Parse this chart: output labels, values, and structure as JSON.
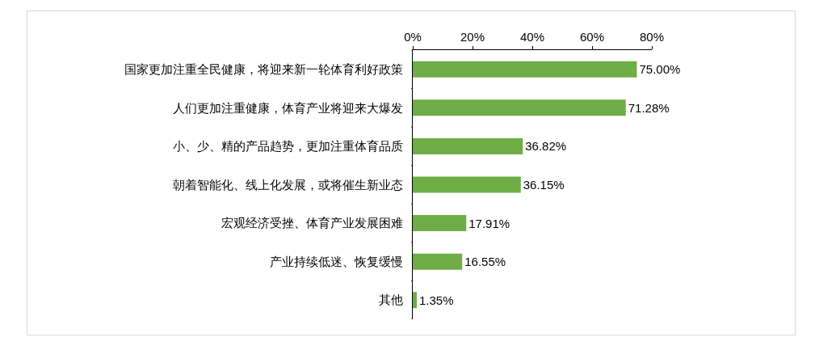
{
  "chart_data": {
    "type": "bar",
    "orientation": "horizontal",
    "categories": [
      "国家更加注重全民健康，将迎来新一轮体育利好政策",
      "人们更加注重健康，体育产业将迎来大爆发",
      "小、少、精的产品趋势，更加注重体育品质",
      "朝着智能化、线上化发展，或将催生新业态",
      "宏观经济受挫、体育产业发展困难",
      "产业持续低迷、恢复缓慢",
      "其他"
    ],
    "values": [
      75.0,
      71.28,
      36.82,
      36.15,
      17.91,
      16.55,
      1.35
    ],
    "value_labels": [
      "75.00%",
      "71.28%",
      "36.82%",
      "36.15%",
      "17.91%",
      "16.55%",
      "1.35%"
    ],
    "color": "#70ad47",
    "xlim": [
      0,
      80
    ],
    "xticks": [
      {
        "value": 0,
        "label": "0%"
      },
      {
        "value": 20,
        "label": "20%"
      },
      {
        "value": 40,
        "label": "40%"
      },
      {
        "value": 60,
        "label": "60%"
      },
      {
        "value": 80,
        "label": "80%"
      }
    ],
    "grid": false
  }
}
